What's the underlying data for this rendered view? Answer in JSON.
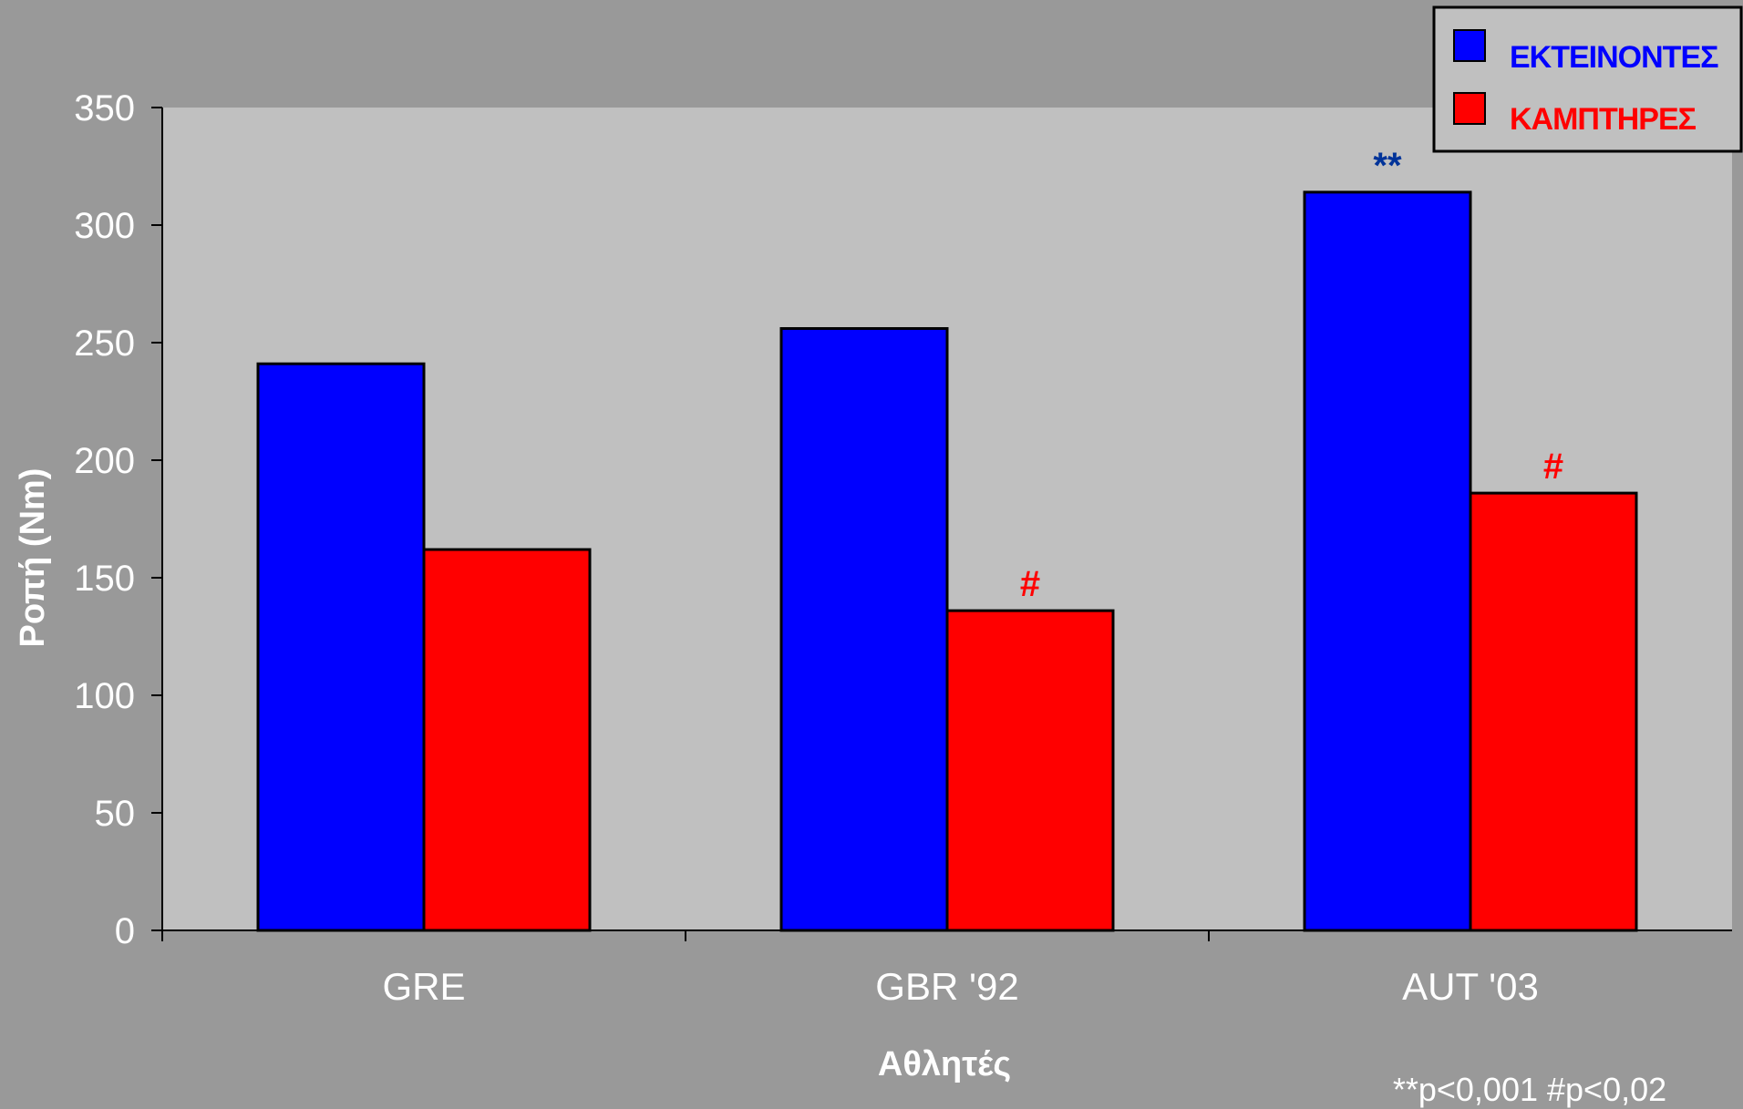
{
  "chart_data": {
    "type": "bar",
    "categories": [
      "GRE",
      "GBR '92",
      "AUT '03"
    ],
    "series": [
      {
        "name": "ΕΚΤΕΙΝΟΝΤΕΣ",
        "color": "#0000ff",
        "values": [
          241,
          256,
          314
        ]
      },
      {
        "name": "ΚΑΜΠΤΗΡΕΣ",
        "color": "#ff0000",
        "values": [
          162,
          136,
          186
        ]
      }
    ],
    "xlabel": "Αθλητές",
    "ylabel": "Ροπή (Nm)",
    "ylim": [
      0,
      350
    ],
    "yticks": [
      0,
      50,
      100,
      150,
      200,
      250,
      300,
      350
    ],
    "grid": false,
    "legend": "top-right",
    "annotations": [
      {
        "category": "AUT '03",
        "series": "ΕΚΤΕΙΝΟΝΤΕΣ",
        "text": "**",
        "color": "#003399"
      },
      {
        "category": "GBR '92",
        "series": "ΚΑΜΠΤΗΡΕΣ",
        "text": "#",
        "color": "#ff0000"
      },
      {
        "category": "AUT '03",
        "series": "ΚΑΜΠΤΗΡΕΣ",
        "text": "#",
        "color": "#ff0000"
      }
    ],
    "footnote": "**p<0,001 #p<0,02"
  },
  "colors": {
    "background": "#999999",
    "plot_area": "#c0c0c0",
    "legend_bg": "#c0c0c0"
  }
}
